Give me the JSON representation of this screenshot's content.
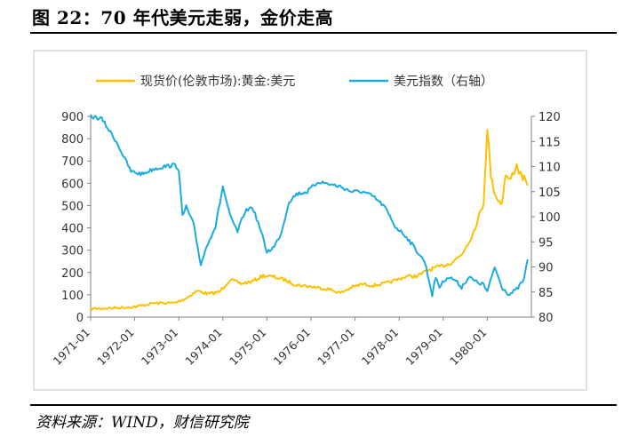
{
  "header": {
    "title": "图 22：70 年代美元走弱，金价走高"
  },
  "footer": {
    "source": "资料来源：WIND，财信研究院"
  },
  "chart_data": {
    "type": "line",
    "title": "",
    "xlabel": "",
    "x_ticks": [
      "1971-01",
      "1972-01",
      "1973-01",
      "1974-01",
      "1975-01",
      "1976-01",
      "1977-01",
      "1978-01",
      "1979-01",
      "1980-01"
    ],
    "y_left": {
      "lim": [
        0,
        900
      ],
      "ticks": [
        0,
        100,
        200,
        300,
        400,
        500,
        600,
        700,
        800,
        900
      ]
    },
    "y_right": {
      "lim": [
        80,
        120
      ],
      "ticks": [
        80,
        85,
        90,
        95,
        100,
        105,
        110,
        115,
        120
      ]
    },
    "grid": false,
    "legend_position": "top",
    "series": [
      {
        "name": "现货价(伦敦市场):黄金:美元",
        "axis": "left",
        "color": "#FFC000",
        "points": [
          [
            "1971-01",
            37
          ],
          [
            "1971-06",
            40
          ],
          [
            "1972-01",
            46
          ],
          [
            "1972-06",
            62
          ],
          [
            "1972-12",
            64
          ],
          [
            "1973-03",
            85
          ],
          [
            "1973-06",
            118
          ],
          [
            "1973-09",
            104
          ],
          [
            "1973-12",
            112
          ],
          [
            "1974-03",
            168
          ],
          [
            "1974-06",
            150
          ],
          [
            "1974-09",
            160
          ],
          [
            "1974-12",
            186
          ],
          [
            "1975-03",
            180
          ],
          [
            "1975-06",
            166
          ],
          [
            "1975-09",
            144
          ],
          [
            "1975-12",
            139
          ],
          [
            "1976-03",
            132
          ],
          [
            "1976-06",
            125
          ],
          [
            "1976-09",
            108
          ],
          [
            "1976-12",
            133
          ],
          [
            "1977-03",
            148
          ],
          [
            "1977-06",
            142
          ],
          [
            "1977-09",
            150
          ],
          [
            "1977-12",
            165
          ],
          [
            "1978-03",
            183
          ],
          [
            "1978-06",
            184
          ],
          [
            "1978-09",
            212
          ],
          [
            "1978-12",
            226
          ],
          [
            "1979-03",
            242
          ],
          [
            "1979-06",
            280
          ],
          [
            "1979-09",
            370
          ],
          [
            "1979-12",
            512
          ],
          [
            "1980-01",
            850
          ],
          [
            "1980-02",
            630
          ],
          [
            "1980-03",
            560
          ],
          [
            "1980-04",
            520
          ],
          [
            "1980-05",
            515
          ],
          [
            "1980-06",
            640
          ],
          [
            "1980-07",
            610
          ],
          [
            "1980-09",
            680
          ],
          [
            "1980-10",
            640
          ],
          [
            "1980-11",
            620
          ],
          [
            "1980-12",
            590
          ]
        ]
      },
      {
        "name": "美元指数（右轴）",
        "axis": "right",
        "color": "#1AABE2",
        "points": [
          [
            "1971-01",
            120
          ],
          [
            "1971-04",
            119.5
          ],
          [
            "1971-08",
            115
          ],
          [
            "1971-12",
            109
          ],
          [
            "1972-03",
            108.5
          ],
          [
            "1972-06",
            109.5
          ],
          [
            "1972-09",
            110
          ],
          [
            "1972-12",
            110.3
          ],
          [
            "1973-01",
            109.5
          ],
          [
            "1973-02",
            100
          ],
          [
            "1973-03",
            102
          ],
          [
            "1973-05",
            98.5
          ],
          [
            "1973-07",
            90.5
          ],
          [
            "1973-09",
            95
          ],
          [
            "1973-11",
            98
          ],
          [
            "1974-01",
            106
          ],
          [
            "1974-03",
            100
          ],
          [
            "1974-05",
            97
          ],
          [
            "1974-07",
            101
          ],
          [
            "1974-09",
            102
          ],
          [
            "1974-11",
            98
          ],
          [
            "1975-01",
            93
          ],
          [
            "1975-03",
            94
          ],
          [
            "1975-05",
            97
          ],
          [
            "1975-07",
            103
          ],
          [
            "1975-09",
            104.5
          ],
          [
            "1975-12",
            105
          ],
          [
            "1976-03",
            107
          ],
          [
            "1976-06",
            106.5
          ],
          [
            "1976-09",
            106
          ],
          [
            "1976-12",
            105
          ],
          [
            "1977-03",
            105
          ],
          [
            "1977-06",
            104
          ],
          [
            "1977-09",
            102
          ],
          [
            "1977-12",
            98
          ],
          [
            "1978-03",
            96
          ],
          [
            "1978-06",
            93
          ],
          [
            "1978-08",
            91
          ],
          [
            "1978-10",
            84.5
          ],
          [
            "1978-11",
            88
          ],
          [
            "1978-12",
            86
          ],
          [
            "1979-02",
            88
          ],
          [
            "1979-04",
            87.5
          ],
          [
            "1979-06",
            86
          ],
          [
            "1979-08",
            88
          ],
          [
            "1979-10",
            87
          ],
          [
            "1979-12",
            86.5
          ],
          [
            "1980-01",
            85
          ],
          [
            "1980-03",
            90
          ],
          [
            "1980-05",
            86
          ],
          [
            "1980-07",
            84.5
          ],
          [
            "1980-09",
            85.5
          ],
          [
            "1980-11",
            87.5
          ],
          [
            "1980-12",
            91.5
          ]
        ]
      }
    ]
  }
}
